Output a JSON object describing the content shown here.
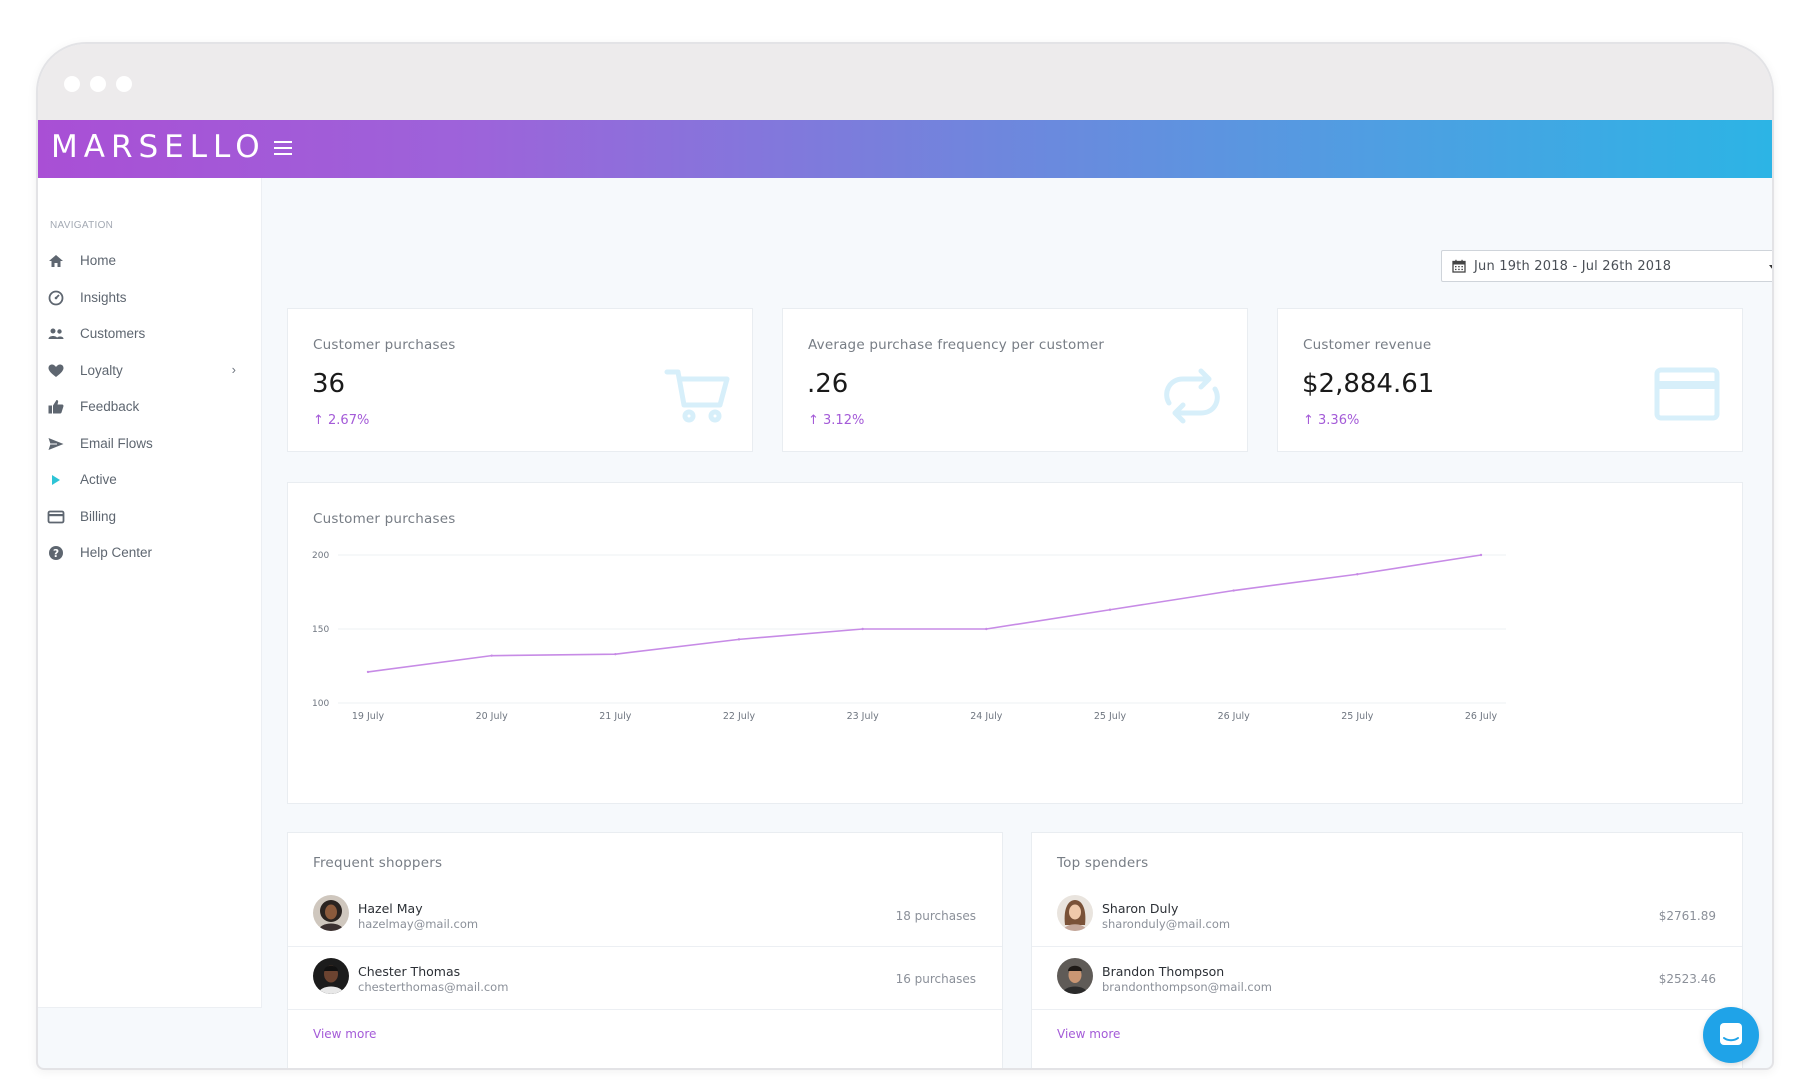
{
  "app": {
    "logo": "MARSELLO"
  },
  "sidebar": {
    "title": "NAVIGATION",
    "items": [
      {
        "label": "Home",
        "icon": "home-icon"
      },
      {
        "label": "Insights",
        "icon": "gauge-icon"
      },
      {
        "label": "Customers",
        "icon": "users-icon"
      },
      {
        "label": "Loyalty",
        "icon": "heart-icon",
        "chevron": "›"
      },
      {
        "label": "Feedback",
        "icon": "thumbs-up-icon"
      },
      {
        "label": "Email Flows",
        "icon": "paper-plane-icon"
      },
      {
        "label": "Active",
        "icon": "play-icon"
      },
      {
        "label": "Billing",
        "icon": "credit-card-icon"
      },
      {
        "label": "Help Center",
        "icon": "question-icon"
      }
    ]
  },
  "date_range": {
    "label": "Jun 19th 2018 - Jul 26th 2018"
  },
  "kpis": [
    {
      "title": "Customer purchases",
      "value": "36",
      "change": "↑ 2.67%",
      "icon": "shopping-cart-icon"
    },
    {
      "title": "Average purchase frequency per customer",
      "value": ".26",
      "change": "↑ 3.12%",
      "icon": "repeat-icon"
    },
    {
      "title": "Customer revenue",
      "value": "$2,884.61",
      "change": "↑ 3.36%",
      "icon": "credit-card-icon"
    }
  ],
  "chart_data": {
    "type": "line",
    "title": "Customer purchases",
    "categories": [
      "19 July",
      "20 July",
      "21 July",
      "22 July",
      "23 July",
      "24 July",
      "25 July",
      "26 July",
      "25 July",
      "26 July"
    ],
    "series": [
      {
        "values": [
          121,
          132,
          133,
          143,
          150,
          150,
          163,
          176,
          187,
          200
        ]
      }
    ],
    "yticks": [
      100,
      150,
      200
    ],
    "ylim": [
      100,
      200
    ],
    "grid": true,
    "colors": {
      "line": "#c78be6",
      "grid": "#eef0f3"
    }
  },
  "frequent_shoppers": {
    "title": "Frequent shoppers",
    "rows": [
      {
        "name": "Hazel May",
        "email": "hazelmay@mail.com",
        "value": "18 purchases"
      },
      {
        "name": "Chester Thomas",
        "email": "chesterthomas@mail.com",
        "value": "16 purchases"
      }
    ],
    "view_more": "View more"
  },
  "top_spenders": {
    "title": "Top spenders",
    "rows": [
      {
        "name": "Sharon Duly",
        "email": "sharonduly@mail.com",
        "value": "$2761.89"
      },
      {
        "name": "Brandon Thompson",
        "email": "brandonthompson@mail.com",
        "value": "$2523.46"
      }
    ],
    "view_more": "View more"
  },
  "colors": {
    "accent": "#a45bd8",
    "header_start": "#a94fd5",
    "header_end": "#2cb4e5",
    "chat": "#1fa3e8"
  }
}
